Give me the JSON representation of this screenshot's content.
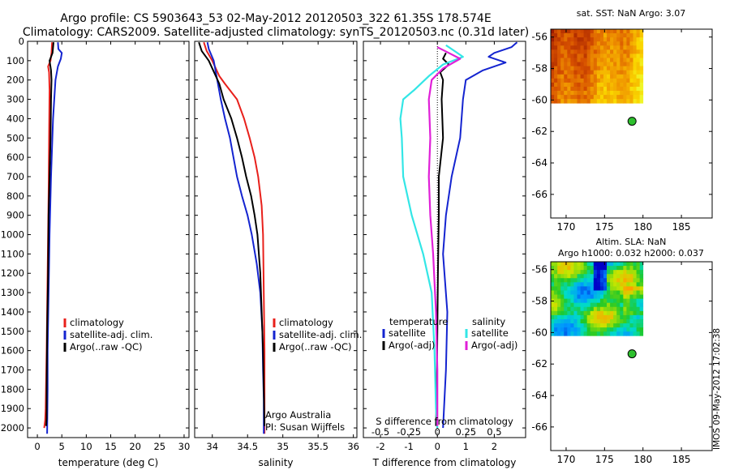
{
  "title_line1": "Argo profile: CS 5903643_53 02-May-2012 20120503_322 61.35S 178.574E",
  "title_line2": "Climatology: CARS2009. Satellite-adjusted climatology: synTS_20120503.nc (0.31d later)",
  "stamp": "IMOS 09-May-2012 17:02:38",
  "colors": {
    "climatology": "#e8201b",
    "satellite": "#1424d0",
    "argo": "#000000",
    "sal_sat": "#33e6e6",
    "sal_argo": "#e020d8",
    "float": "#2ec02e"
  },
  "chart_data": [
    {
      "type": "line",
      "xlabel": "temperature (deg C)",
      "xlim": [
        -2,
        31
      ],
      "xticks": [
        0,
        5,
        10,
        15,
        20,
        25,
        30
      ],
      "ylim": [
        0,
        2050
      ],
      "yticks": [
        0,
        100,
        200,
        300,
        400,
        500,
        600,
        700,
        800,
        900,
        1000,
        1100,
        1200,
        1300,
        1400,
        1500,
        1600,
        1700,
        1800,
        1900,
        2000
      ],
      "legend": [
        "climatology",
        "satellite-adj. clim.",
        "Argo(..raw -QC)"
      ],
      "series": [
        {
          "key": "clim",
          "values": [
            [
              3,
              5
            ],
            [
              2.9,
              60
            ],
            [
              2.7,
              100
            ],
            [
              2.2,
              130
            ],
            [
              2.4,
              160
            ],
            [
              2.5,
              250
            ],
            [
              2.4,
              500
            ],
            [
              2.3,
              800
            ],
            [
              2.1,
              1200
            ],
            [
              1.9,
              1600
            ],
            [
              1.7,
              1900
            ],
            [
              1.6,
              1960
            ],
            [
              1.4,
              2000
            ]
          ]
        },
        {
          "key": "sat",
          "values": [
            [
              4.2,
              5
            ],
            [
              4.3,
              40
            ],
            [
              5.0,
              60
            ],
            [
              4.8,
              90
            ],
            [
              4.2,
              130
            ],
            [
              3.7,
              200
            ],
            [
              3.2,
              400
            ],
            [
              2.8,
              700
            ],
            [
              2.5,
              1000
            ],
            [
              2.3,
              1300
            ],
            [
              2.1,
              1600
            ],
            [
              2.1,
              1800
            ],
            [
              2.0,
              2030
            ]
          ]
        },
        {
          "key": "argo",
          "values": [
            [
              3.3,
              5
            ],
            [
              3.1,
              60
            ],
            [
              2.5,
              100
            ],
            [
              2.8,
              150
            ],
            [
              2.9,
              200
            ],
            [
              2.8,
              300
            ],
            [
              2.7,
              500
            ],
            [
              2.5,
              700
            ],
            [
              2.3,
              900
            ],
            [
              2.2,
              1200
            ],
            [
              2.0,
              1500
            ],
            [
              1.9,
              1800
            ],
            [
              1.9,
              1950
            ],
            [
              1.8,
              1990
            ]
          ]
        }
      ]
    },
    {
      "type": "line",
      "xlabel": "salinity",
      "xlim": [
        33.75,
        36.05
      ],
      "xticks": [
        34,
        34.5,
        35,
        35.5,
        36
      ],
      "ylim": [
        0,
        2050
      ],
      "legend": [
        "climatology",
        "satellite-adj. clim.",
        "Argo(..raw -QC)"
      ],
      "annotation": [
        "Argo Australia",
        "PI: Susan Wijffels"
      ],
      "series": [
        {
          "key": "clim",
          "values": [
            [
              33.88,
              5
            ],
            [
              33.92,
              50
            ],
            [
              34.0,
              100
            ],
            [
              34.1,
              180
            ],
            [
              34.18,
              220
            ],
            [
              34.35,
              300
            ],
            [
              34.45,
              400
            ],
            [
              34.53,
              500
            ],
            [
              34.6,
              600
            ],
            [
              34.65,
              700
            ],
            [
              34.7,
              850
            ],
            [
              34.72,
              1000
            ],
            [
              34.73,
              1300
            ],
            [
              34.74,
              1600
            ],
            [
              34.74,
              1900
            ],
            [
              34.74,
              2030
            ]
          ]
        },
        {
          "key": "sat",
          "values": [
            [
              33.93,
              5
            ],
            [
              33.95,
              40
            ],
            [
              34.02,
              100
            ],
            [
              34.05,
              160
            ],
            [
              34.08,
              220
            ],
            [
              34.12,
              300
            ],
            [
              34.18,
              400
            ],
            [
              34.25,
              500
            ],
            [
              34.3,
              600
            ],
            [
              34.35,
              700
            ],
            [
              34.42,
              800
            ],
            [
              34.5,
              900
            ],
            [
              34.56,
              1000
            ],
            [
              34.63,
              1150
            ],
            [
              34.68,
              1300
            ],
            [
              34.71,
              1500
            ],
            [
              34.72,
              1700
            ],
            [
              34.73,
              1850
            ],
            [
              34.73,
              2030
            ]
          ]
        },
        {
          "key": "argo",
          "values": [
            [
              33.81,
              5
            ],
            [
              33.85,
              50
            ],
            [
              33.95,
              100
            ],
            [
              34.05,
              180
            ],
            [
              34.1,
              220
            ],
            [
              34.16,
              300
            ],
            [
              34.27,
              400
            ],
            [
              34.35,
              500
            ],
            [
              34.42,
              600
            ],
            [
              34.48,
              700
            ],
            [
              34.55,
              800
            ],
            [
              34.6,
              900
            ],
            [
              34.64,
              1000
            ],
            [
              34.68,
              1200
            ],
            [
              34.7,
              1400
            ],
            [
              34.72,
              1600
            ],
            [
              34.73,
              1800
            ],
            [
              34.74,
              1990
            ]
          ]
        }
      ]
    },
    {
      "type": "line",
      "xlabel": "T difference from climatology",
      "xlabel_top": "S difference from climatology",
      "xlim": [
        -2.6,
        3.1
      ],
      "xticks": [
        -2,
        -1,
        0,
        1,
        2
      ],
      "xticks_top_labels": [
        "-0.5",
        "-0.25",
        "0",
        "0.25",
        "0.5"
      ],
      "xticks_top_pos": [
        -2,
        -1,
        0,
        1,
        2
      ],
      "ylim": [
        0,
        2050
      ],
      "legend_headers": [
        "temperature",
        "salinity"
      ],
      "legend": [
        "satellite",
        "Argo(-adj)",
        "satellite",
        "Argo(-adj)"
      ],
      "series": [
        {
          "key": "t_sat",
          "values": [
            [
              2.8,
              5
            ],
            [
              2.6,
              30
            ],
            [
              2.0,
              60
            ],
            [
              1.8,
              80
            ],
            [
              2.4,
              110
            ],
            [
              1.6,
              150
            ],
            [
              1.0,
              200
            ],
            [
              0.9,
              300
            ],
            [
              0.8,
              500
            ],
            [
              0.5,
              700
            ],
            [
              0.3,
              900
            ],
            [
              0.2,
              1100
            ],
            [
              0.35,
              1400
            ],
            [
              0.3,
              1700
            ],
            [
              0.2,
              2000
            ]
          ]
        },
        {
          "key": "t_argo",
          "values": [
            [
              0.3,
              60
            ],
            [
              0.2,
              90
            ],
            [
              0.4,
              120
            ],
            [
              0.1,
              160
            ],
            [
              0.2,
              200
            ],
            [
              0.15,
              300
            ],
            [
              0.2,
              500
            ],
            [
              0.05,
              700
            ],
            [
              0.05,
              900
            ],
            [
              0.02,
              1200
            ],
            [
              0.0,
              1500
            ],
            [
              -0.02,
              1800
            ],
            [
              -0.05,
              1990
            ]
          ]
        },
        {
          "key": "s_sat",
          "values": [
            [
              0.3,
              20
            ],
            [
              0.6,
              50
            ],
            [
              0.9,
              80
            ],
            [
              0.2,
              120
            ],
            [
              -0.3,
              180
            ],
            [
              -0.8,
              250
            ],
            [
              -1.2,
              300
            ],
            [
              -1.3,
              400
            ],
            [
              -1.25,
              500
            ],
            [
              -1.2,
              700
            ],
            [
              -0.9,
              900
            ],
            [
              -0.5,
              1100
            ],
            [
              -0.2,
              1300
            ],
            [
              -0.1,
              1600
            ],
            [
              -0.05,
              1900
            ],
            [
              0.0,
              2000
            ]
          ]
        },
        {
          "key": "s_argo",
          "values": [
            [
              0.0,
              30
            ],
            [
              0.4,
              60
            ],
            [
              0.8,
              90
            ],
            [
              0.2,
              140
            ],
            [
              -0.2,
              200
            ],
            [
              -0.3,
              300
            ],
            [
              -0.25,
              500
            ],
            [
              -0.3,
              700
            ],
            [
              -0.25,
              900
            ],
            [
              -0.15,
              1100
            ],
            [
              -0.05,
              1400
            ],
            [
              0.0,
              1700
            ],
            [
              0.0,
              1990
            ]
          ]
        }
      ]
    },
    {
      "type": "heatmap",
      "title": "sat. SST: NaN Argo: 3.07",
      "xlim": [
        168,
        189
      ],
      "ylim": [
        -67.5,
        -55.5
      ],
      "xticks": [
        170,
        175,
        180,
        185
      ],
      "yticks": [
        -56,
        -58,
        -60,
        -62,
        -64,
        -66
      ],
      "field_extent": {
        "lon": [
          168,
          180
        ],
        "lat": [
          -60.2,
          -55.5
        ]
      },
      "float_position": [
        178.574,
        -61.35
      ]
    },
    {
      "type": "heatmap",
      "title": "Altim. SLA: NaN",
      "subtitle": "Argo h1000: 0.032 h2000: 0.037",
      "xlim": [
        168,
        189
      ],
      "ylim": [
        -67.5,
        -55.5
      ],
      "xticks": [
        170,
        175,
        180,
        185
      ],
      "yticks": [
        -56,
        -58,
        -60,
        -62,
        -64,
        -66
      ],
      "field_extent": {
        "lon": [
          168,
          180
        ],
        "lat": [
          -60.2,
          -55.5
        ]
      },
      "float_position": [
        178.574,
        -61.35
      ]
    }
  ]
}
